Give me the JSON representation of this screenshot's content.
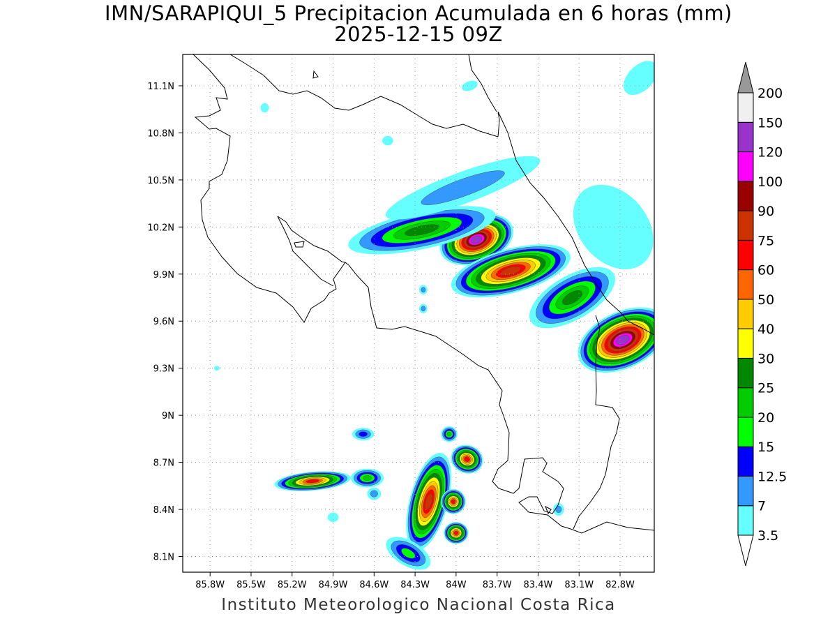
{
  "header": {
    "title": "IMN/SARAPIQUI_5 Precipitacion Acumulada en 6 horas (mm)",
    "subtitle": "2025-12-15 09Z"
  },
  "footer": {
    "credit": "Instituto Meteorologico Nacional Costa Rica"
  },
  "map": {
    "lon_range": [
      -86.0,
      -82.55
    ],
    "lat_range": [
      8.0,
      11.3
    ],
    "lon_ticks": [
      {
        "value": -85.8,
        "label": "85.8W"
      },
      {
        "value": -85.5,
        "label": "85.5W"
      },
      {
        "value": -85.2,
        "label": "85.2W"
      },
      {
        "value": -84.9,
        "label": "84.9W"
      },
      {
        "value": -84.6,
        "label": "84.6W"
      },
      {
        "value": -84.3,
        "label": "84.3W"
      },
      {
        "value": -84.0,
        "label": "84W"
      },
      {
        "value": -83.7,
        "label": "83.7W"
      },
      {
        "value": -83.4,
        "label": "83.4W"
      },
      {
        "value": -83.1,
        "label": "83.1W"
      },
      {
        "value": -82.8,
        "label": "82.8W"
      }
    ],
    "lat_ticks": [
      {
        "value": 11.1,
        "label": "11.1N"
      },
      {
        "value": 10.8,
        "label": "10.8N"
      },
      {
        "value": 10.5,
        "label": "10.5N"
      },
      {
        "value": 10.2,
        "label": "10.2N"
      },
      {
        "value": 9.9,
        "label": "9.9N"
      },
      {
        "value": 9.6,
        "label": "9.6N"
      },
      {
        "value": 9.3,
        "label": "9.3N"
      },
      {
        "value": 9.0,
        "label": "9N"
      },
      {
        "value": 8.7,
        "label": "8.7N"
      },
      {
        "value": 8.4,
        "label": "8.4N"
      },
      {
        "value": 8.1,
        "label": "8.1N"
      }
    ],
    "grid": true,
    "precip_cells": [
      {
        "lon": -83.85,
        "lat": 10.12,
        "peak_mm": 130,
        "rlon": 0.28,
        "rlat": 0.15,
        "rot": -20
      },
      {
        "lon": -83.6,
        "lat": 9.92,
        "peak_mm": 75,
        "rlon": 0.45,
        "rlat": 0.14,
        "rot": -15
      },
      {
        "lon": -84.25,
        "lat": 10.18,
        "peak_mm": 28,
        "rlon": 0.55,
        "rlat": 0.12,
        "rot": -12
      },
      {
        "lon": -83.95,
        "lat": 10.45,
        "peak_mm": 8,
        "rlon": 0.6,
        "rlat": 0.1,
        "rot": -20
      },
      {
        "lon": -83.15,
        "lat": 9.75,
        "peak_mm": 25,
        "rlon": 0.35,
        "rlat": 0.14,
        "rot": -30
      },
      {
        "lon": -82.78,
        "lat": 9.48,
        "peak_mm": 130,
        "rlon": 0.35,
        "rlat": 0.18,
        "rot": -25
      },
      {
        "lon": -82.85,
        "lat": 10.2,
        "peak_mm": 6,
        "rlon": 0.25,
        "rlat": 0.3,
        "rot": -40
      },
      {
        "lon": -85.05,
        "lat": 8.58,
        "peak_mm": 60,
        "rlon": 0.28,
        "rlat": 0.06,
        "rot": -5
      },
      {
        "lon": -84.65,
        "lat": 8.6,
        "peak_mm": 22,
        "rlon": 0.12,
        "rlat": 0.06,
        "rot": 0
      },
      {
        "lon": -84.2,
        "lat": 8.45,
        "peak_mm": 75,
        "rlon": 0.14,
        "rlat": 0.32,
        "rot": 15
      },
      {
        "lon": -83.92,
        "lat": 8.72,
        "peak_mm": 70,
        "rlon": 0.12,
        "rlat": 0.09,
        "rot": 20
      },
      {
        "lon": -84.02,
        "lat": 8.45,
        "peak_mm": 60,
        "rlon": 0.09,
        "rlat": 0.08,
        "rot": 0
      },
      {
        "lon": -84.0,
        "lat": 8.25,
        "peak_mm": 60,
        "rlon": 0.09,
        "rlat": 0.07,
        "rot": 0
      },
      {
        "lon": -84.05,
        "lat": 8.88,
        "peak_mm": 20,
        "rlon": 0.06,
        "rlat": 0.05,
        "rot": 0
      },
      {
        "lon": -84.35,
        "lat": 8.12,
        "peak_mm": 15,
        "rlon": 0.18,
        "rlat": 0.08,
        "rot": 30
      },
      {
        "lon": -84.68,
        "lat": 8.88,
        "peak_mm": 14,
        "rlon": 0.08,
        "rlat": 0.04,
        "rot": 0
      },
      {
        "lon": -84.6,
        "lat": 8.5,
        "peak_mm": 10,
        "rlon": 0.05,
        "rlat": 0.04,
        "rot": 0
      },
      {
        "lon": -84.24,
        "lat": 9.8,
        "peak_mm": 9,
        "rlon": 0.03,
        "rlat": 0.03,
        "rot": 0
      },
      {
        "lon": -84.24,
        "lat": 9.68,
        "peak_mm": 8,
        "rlon": 0.03,
        "rlat": 0.03,
        "rot": 0
      },
      {
        "lon": -83.25,
        "lat": 8.4,
        "peak_mm": 8,
        "rlon": 0.04,
        "rlat": 0.04,
        "rot": 0
      },
      {
        "lon": -84.9,
        "lat": 8.35,
        "peak_mm": 6,
        "rlon": 0.04,
        "rlat": 0.03,
        "rot": 0
      },
      {
        "lon": -84.5,
        "lat": 10.75,
        "peak_mm": 5,
        "rlon": 0.04,
        "rlat": 0.03,
        "rot": 0
      },
      {
        "lon": -83.9,
        "lat": 11.1,
        "peak_mm": 5,
        "rlon": 0.06,
        "rlat": 0.03,
        "rot": -20
      },
      {
        "lon": -85.4,
        "lat": 10.96,
        "peak_mm": 4,
        "rlon": 0.03,
        "rlat": 0.03,
        "rot": 0
      },
      {
        "lon": -85.75,
        "lat": 9.3,
        "peak_mm": 4,
        "rlon": 0.02,
        "rlat": 0.015,
        "rot": 0
      },
      {
        "lon": -82.65,
        "lat": 11.15,
        "peak_mm": 6,
        "rlon": 0.15,
        "rlat": 0.08,
        "rot": -45
      }
    ]
  },
  "colorbar": {
    "levels": [
      {
        "label": "3.5",
        "color": "#66ffff"
      },
      {
        "label": "7",
        "color": "#3399ff"
      },
      {
        "label": "12.5",
        "color": "#0000ff"
      },
      {
        "label": "15",
        "color": "#00ff00"
      },
      {
        "label": "20",
        "color": "#00cc00"
      },
      {
        "label": "25",
        "color": "#008800"
      },
      {
        "label": "30",
        "color": "#ffff00"
      },
      {
        "label": "40",
        "color": "#ffcc00"
      },
      {
        "label": "50",
        "color": "#ff6600"
      },
      {
        "label": "60",
        "color": "#ff0000"
      },
      {
        "label": "75",
        "color": "#cc3300"
      },
      {
        "label": "90",
        "color": "#990000"
      },
      {
        "label": "100",
        "color": "#ff00ff"
      },
      {
        "label": "120",
        "color": "#9933cc"
      },
      {
        "label": "150",
        "color": "#f0f0f0"
      },
      {
        "label": "200",
        "color": "#999999"
      }
    ],
    "scale_values": [
      3.5,
      7,
      12.5,
      15,
      20,
      25,
      30,
      40,
      50,
      60,
      75,
      90,
      100,
      120,
      150,
      200
    ]
  }
}
